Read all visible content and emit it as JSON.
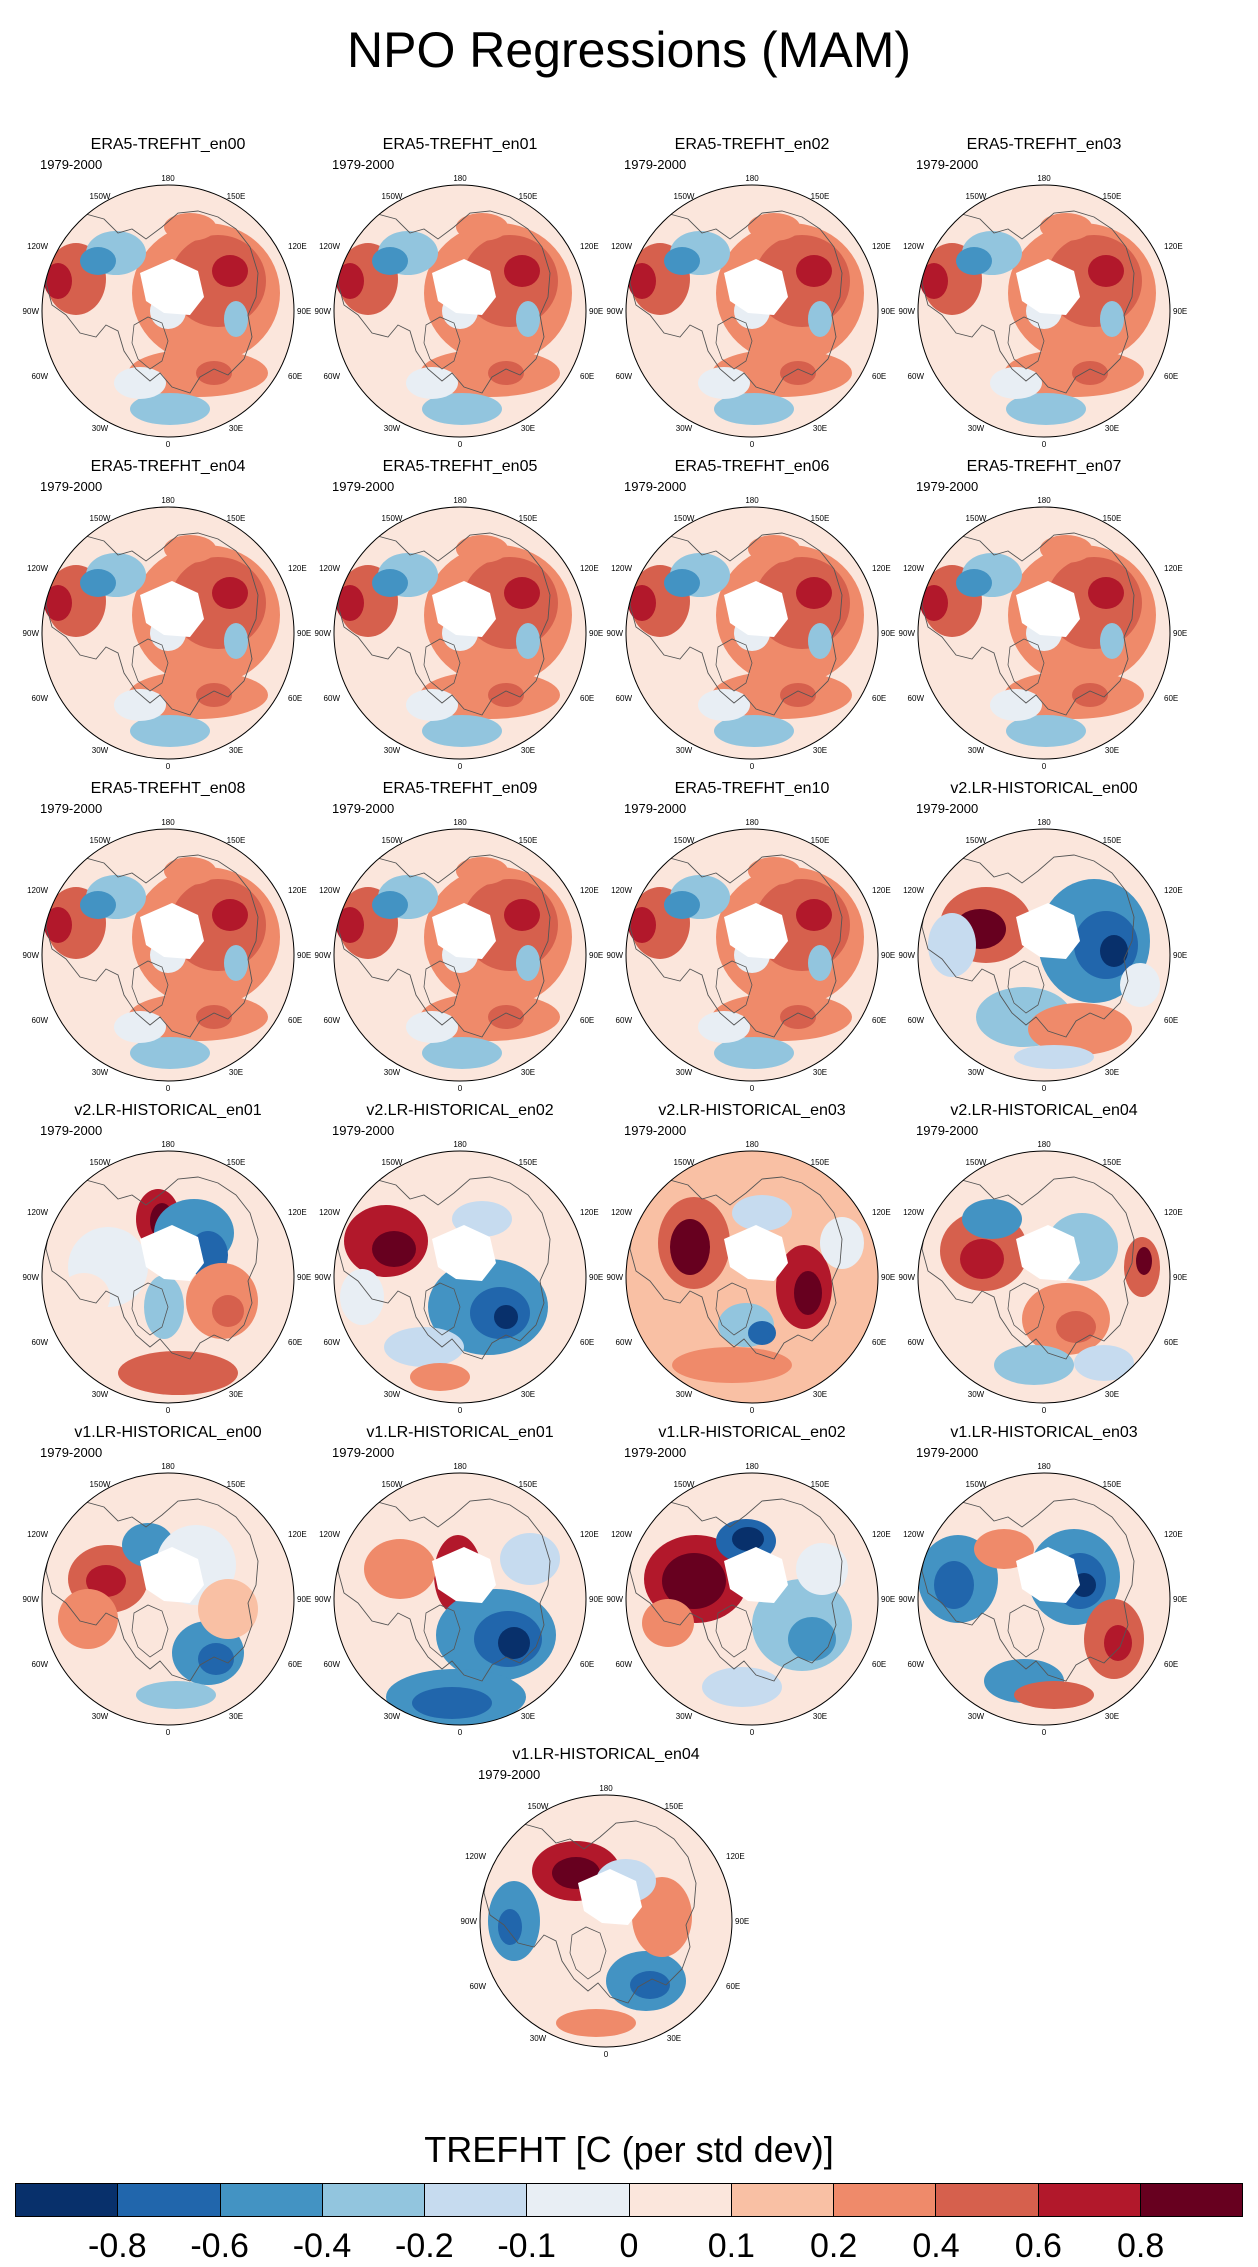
{
  "figure": {
    "title": "NPO Regressions (MAM)",
    "panels": [
      {
        "title": "ERA5-TREFHT_en00",
        "period": "1979-2000",
        "pattern": "era5"
      },
      {
        "title": "ERA5-TREFHT_en01",
        "period": "1979-2000",
        "pattern": "era5"
      },
      {
        "title": "ERA5-TREFHT_en02",
        "period": "1979-2000",
        "pattern": "era5"
      },
      {
        "title": "ERA5-TREFHT_en03",
        "period": "1979-2000",
        "pattern": "era5"
      },
      {
        "title": "ERA5-TREFHT_en04",
        "period": "1979-2000",
        "pattern": "era5"
      },
      {
        "title": "ERA5-TREFHT_en05",
        "period": "1979-2000",
        "pattern": "era5"
      },
      {
        "title": "ERA5-TREFHT_en06",
        "period": "1979-2000",
        "pattern": "era5"
      },
      {
        "title": "ERA5-TREFHT_en07",
        "period": "1979-2000",
        "pattern": "era5"
      },
      {
        "title": "ERA5-TREFHT_en08",
        "period": "1979-2000",
        "pattern": "era5"
      },
      {
        "title": "ERA5-TREFHT_en09",
        "period": "1979-2000",
        "pattern": "era5"
      },
      {
        "title": "ERA5-TREFHT_en10",
        "period": "1979-2000",
        "pattern": "era5"
      },
      {
        "title": "v2.LR-HISTORICAL_en00",
        "period": "1979-2000",
        "pattern": "v2a"
      },
      {
        "title": "v2.LR-HISTORICAL_en01",
        "period": "1979-2000",
        "pattern": "v2b"
      },
      {
        "title": "v2.LR-HISTORICAL_en02",
        "period": "1979-2000",
        "pattern": "v2c"
      },
      {
        "title": "v2.LR-HISTORICAL_en03",
        "period": "1979-2000",
        "pattern": "v2d"
      },
      {
        "title": "v2.LR-HISTORICAL_en04",
        "period": "1979-2000",
        "pattern": "v2e"
      },
      {
        "title": "v1.LR-HISTORICAL_en00",
        "period": "1979-2000",
        "pattern": "v1a"
      },
      {
        "title": "v1.LR-HISTORICAL_en01",
        "period": "1979-2000",
        "pattern": "v1b"
      },
      {
        "title": "v1.LR-HISTORICAL_en02",
        "period": "1979-2000",
        "pattern": "v1c"
      },
      {
        "title": "v1.LR-HISTORICAL_en03",
        "period": "1979-2000",
        "pattern": "v1d"
      },
      {
        "title": "v1.LR-HISTORICAL_en04",
        "period": "1979-2000",
        "pattern": "v1e"
      }
    ],
    "longitude_labels": {
      "top": "180",
      "left_top_1": "150W",
      "right_top_1": "150E",
      "left_top_2": "120W",
      "right_top_2": "120E",
      "left_mid": "90W",
      "right_mid": "90E",
      "left_bottom_2": "60W",
      "right_bottom_2": "60E",
      "left_bottom_1": "30W",
      "right_bottom_1": "30E",
      "bottom": "0"
    },
    "colorbar": {
      "title": "TREFHT [C (per std dev)]",
      "colors": [
        "#08306b",
        "#2166ac",
        "#4393c3",
        "#92c5de",
        "#c6dbef",
        "#e8eef4",
        "#fbe6dc",
        "#f9c0a4",
        "#ef8a6a",
        "#d6604d",
        "#b2182b",
        "#67001f"
      ],
      "ticks": [
        "-0.8",
        "-0.6",
        "-0.4",
        "-0.2",
        "-0.1",
        "0",
        "0.1",
        "0.2",
        "0.4",
        "0.6",
        "0.8"
      ]
    }
  }
}
